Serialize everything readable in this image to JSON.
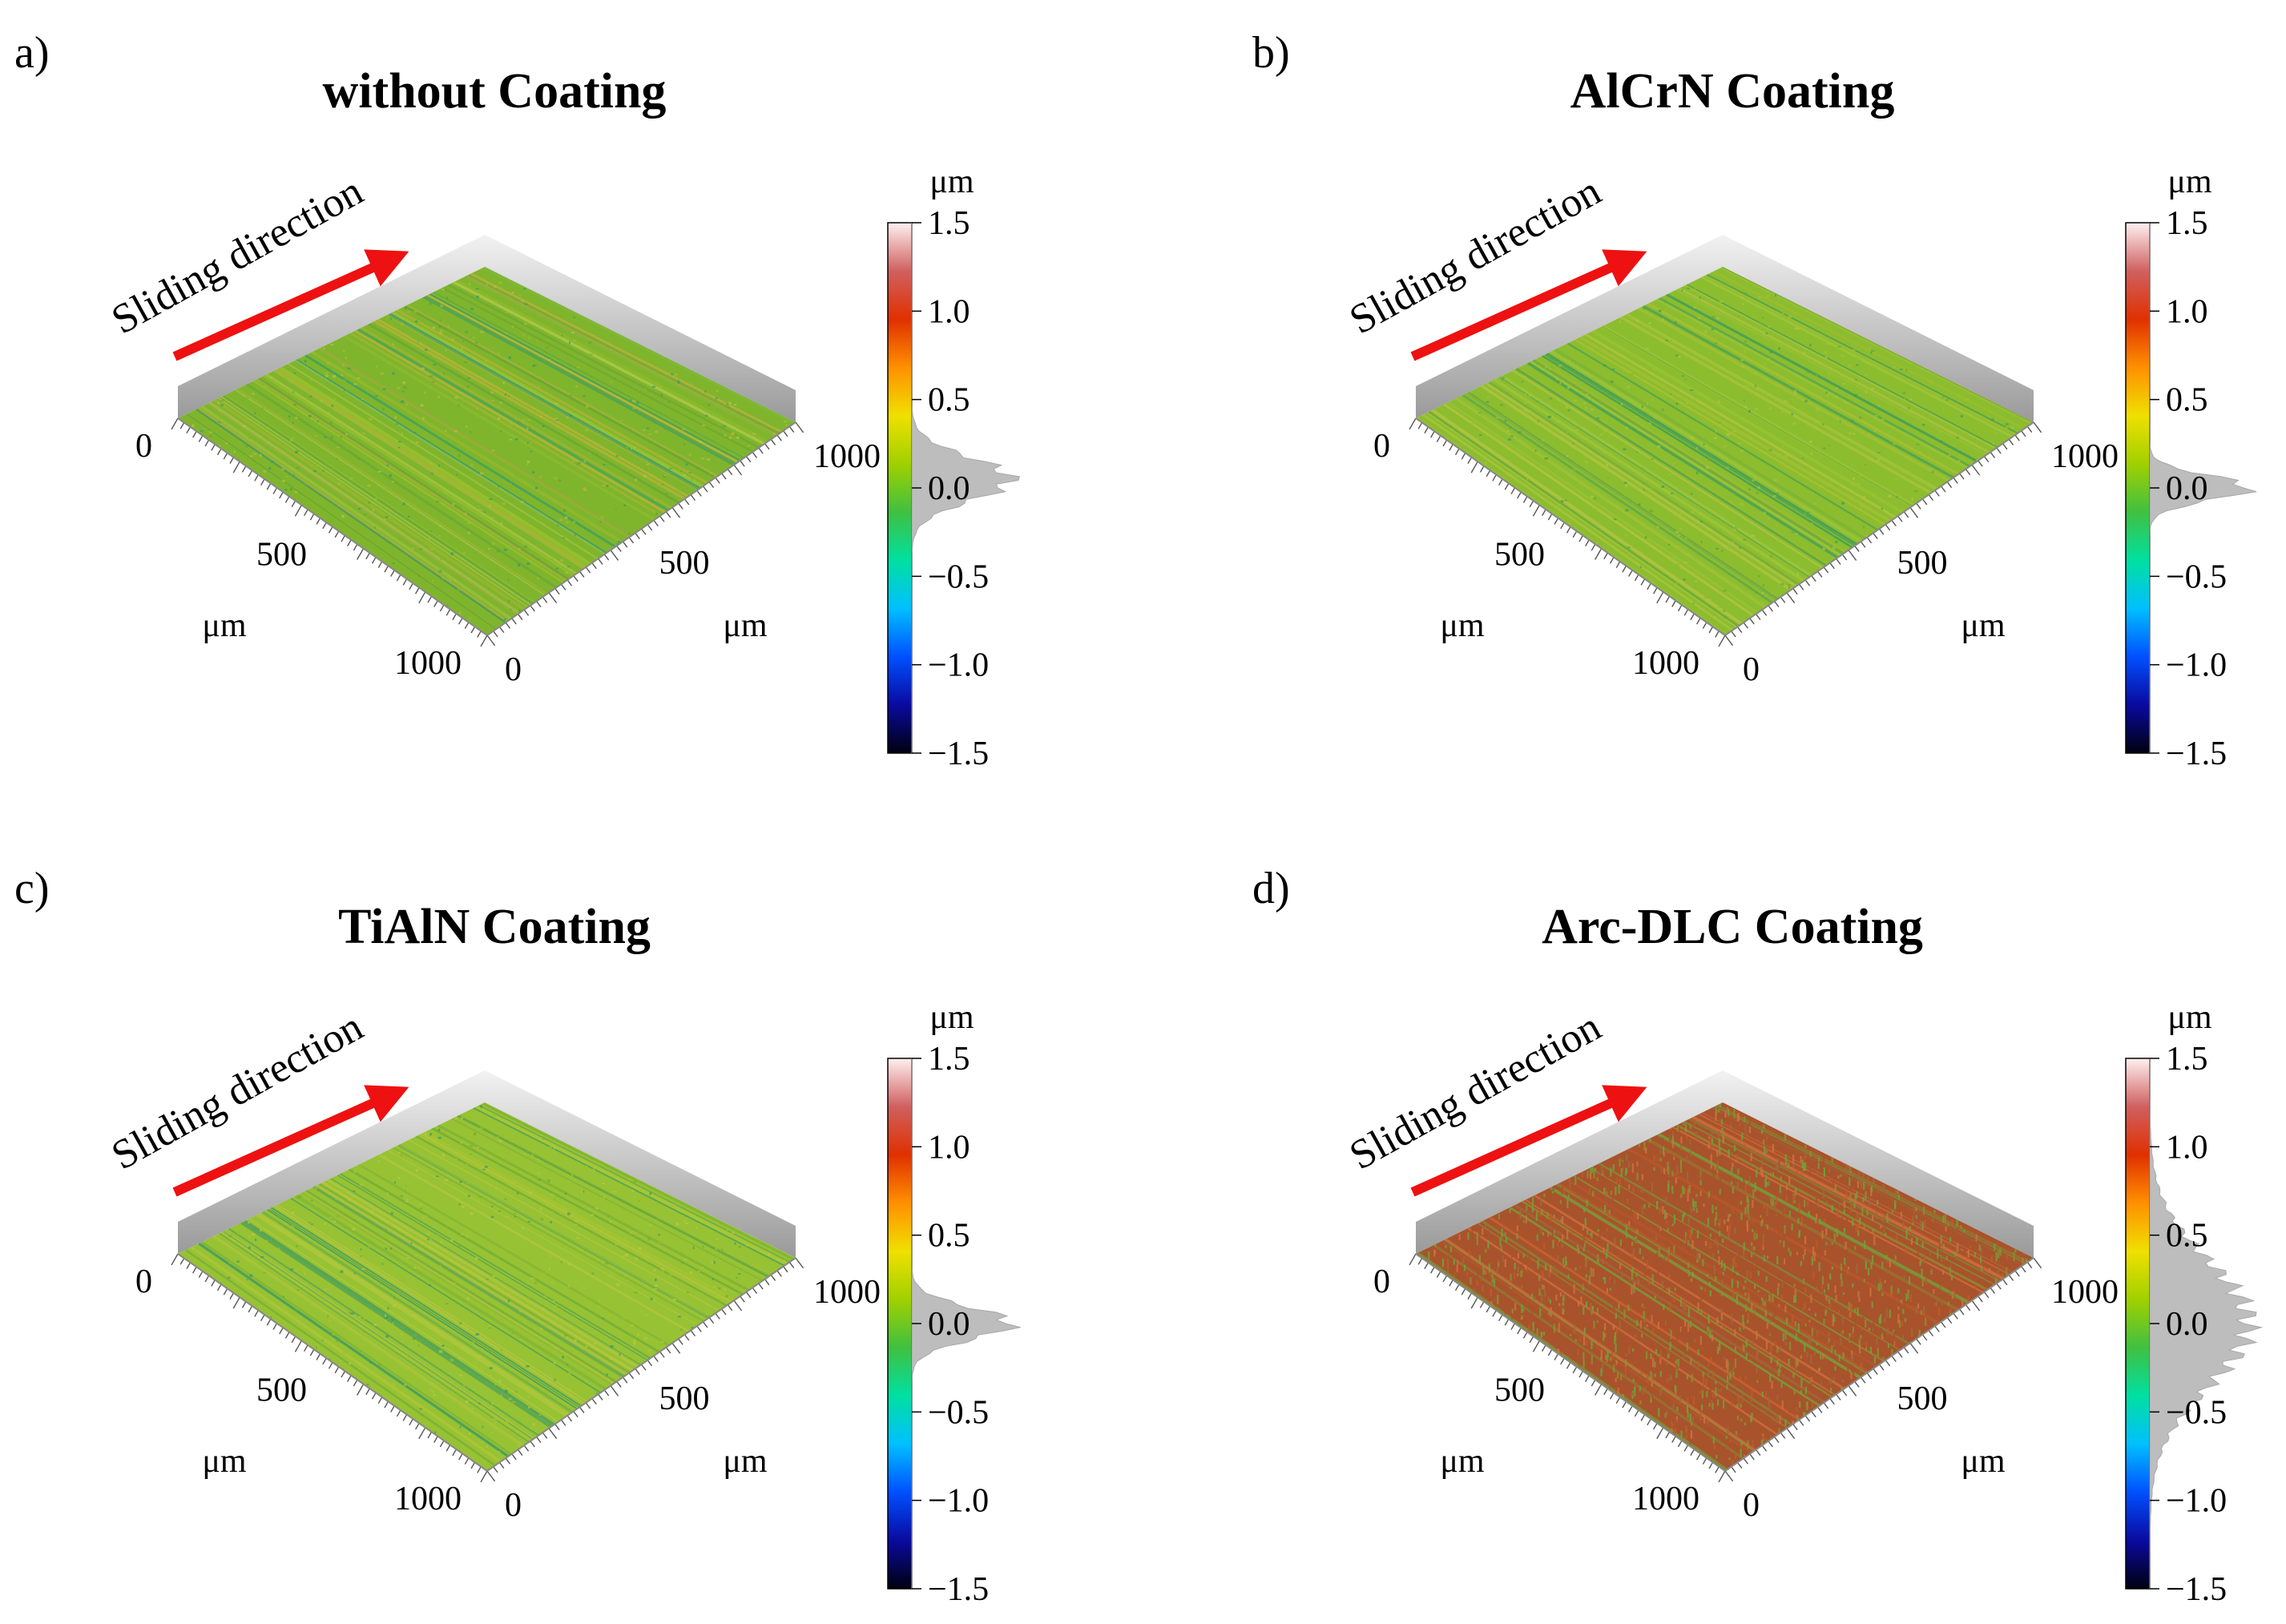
{
  "figure": {
    "colorbar_gradient": [
      "#000010",
      "#0a0aa0",
      "#0050ff",
      "#00c0ff",
      "#00e0a0",
      "#40c040",
      "#a0d000",
      "#f0e000",
      "#ff9000",
      "#e03000",
      "#d06060",
      "#fff0f0"
    ]
  },
  "chart_data": [
    {
      "type": "heatmap",
      "panel_label": "a)",
      "title": "without Coating",
      "annotation": "Sliding direction",
      "x_unit": "μm",
      "y_unit": "μm",
      "z_unit": "μm",
      "x_axis": {
        "range": [
          0,
          1000
        ],
        "ticks": [
          "0",
          "500",
          "1000"
        ]
      },
      "y_axis": {
        "range": [
          0,
          1000
        ],
        "ticks": [
          "0",
          "500",
          "1000"
        ]
      },
      "colorbar": {
        "range": [
          -1.5,
          1.5
        ],
        "ticks": [
          "1.5",
          "1.0",
          "0.5",
          "0.0",
          "−0.5",
          "−1.0",
          "−1.5"
        ]
      },
      "height_histogram": {
        "center": 0.05,
        "spread": 0.12
      },
      "surface_palette": [
        "#7fb52c",
        "#9ac12e",
        "#c4b33c",
        "#5f9f3a",
        "#2e9b6e",
        "#b0c84a"
      ]
    },
    {
      "type": "heatmap",
      "panel_label": "b)",
      "title": "AlCrN Coating",
      "annotation": "Sliding direction",
      "x_unit": "μm",
      "y_unit": "μm",
      "z_unit": "μm",
      "x_axis": {
        "range": [
          0,
          1000
        ],
        "ticks": [
          "0",
          "500",
          "1000"
        ]
      },
      "y_axis": {
        "range": [
          0,
          1000
        ],
        "ticks": [
          "0",
          "500",
          "1000"
        ]
      },
      "colorbar": {
        "range": [
          -1.5,
          1.5
        ],
        "ticks": [
          "1.5",
          "1.0",
          "0.5",
          "0.0",
          "−0.5",
          "−1.0",
          "−1.5"
        ]
      },
      "height_histogram": {
        "center": 0.0,
        "spread": 0.07
      },
      "surface_palette": [
        "#8cbd2f",
        "#9fc53a",
        "#6aa83c",
        "#b5c443",
        "#3f9c5a",
        "#a9bf35"
      ]
    },
    {
      "type": "heatmap",
      "panel_label": "c)",
      "title": "TiAlN Coating",
      "annotation": "Sliding direction",
      "x_unit": "μm",
      "y_unit": "μm",
      "z_unit": "μm",
      "x_axis": {
        "range": [
          0,
          1000
        ],
        "ticks": [
          "0",
          "500",
          "1000"
        ]
      },
      "y_axis": {
        "range": [
          0,
          1000
        ],
        "ticks": [
          "0",
          "500",
          "1000"
        ]
      },
      "colorbar": {
        "range": [
          -1.5,
          1.5
        ],
        "ticks": [
          "1.5",
          "1.0",
          "0.5",
          "0.0",
          "−0.5",
          "−1.0",
          "−1.5"
        ]
      },
      "height_histogram": {
        "center": 0.0,
        "spread": 0.09
      },
      "surface_palette": [
        "#97c233",
        "#b2c83c",
        "#72ad38",
        "#c0c747",
        "#3d9a62",
        "#a6c433"
      ]
    },
    {
      "type": "heatmap",
      "panel_label": "d)",
      "title": "Arc-DLC Coating",
      "annotation": "Sliding direction",
      "x_unit": "μm",
      "y_unit": "μm",
      "z_unit": "μm",
      "x_axis": {
        "range": [
          0,
          1000
        ],
        "ticks": [
          "0",
          "500",
          "1000"
        ]
      },
      "y_axis": {
        "range": [
          0,
          1000
        ],
        "ticks": [
          "0",
          "500",
          "1000"
        ]
      },
      "colorbar": {
        "range": [
          -1.5,
          1.5
        ],
        "ticks": [
          "1.5",
          "1.0",
          "0.5",
          "0.0",
          "−0.5",
          "−1.0",
          "−1.5"
        ]
      },
      "height_histogram": {
        "center": 0.0,
        "spread": 0.35
      },
      "surface_palette": [
        "#a8532c",
        "#8b8f34",
        "#c05a2a",
        "#6aa43a",
        "#9e6a3a",
        "#d07040",
        "#7a9c3c"
      ]
    }
  ]
}
